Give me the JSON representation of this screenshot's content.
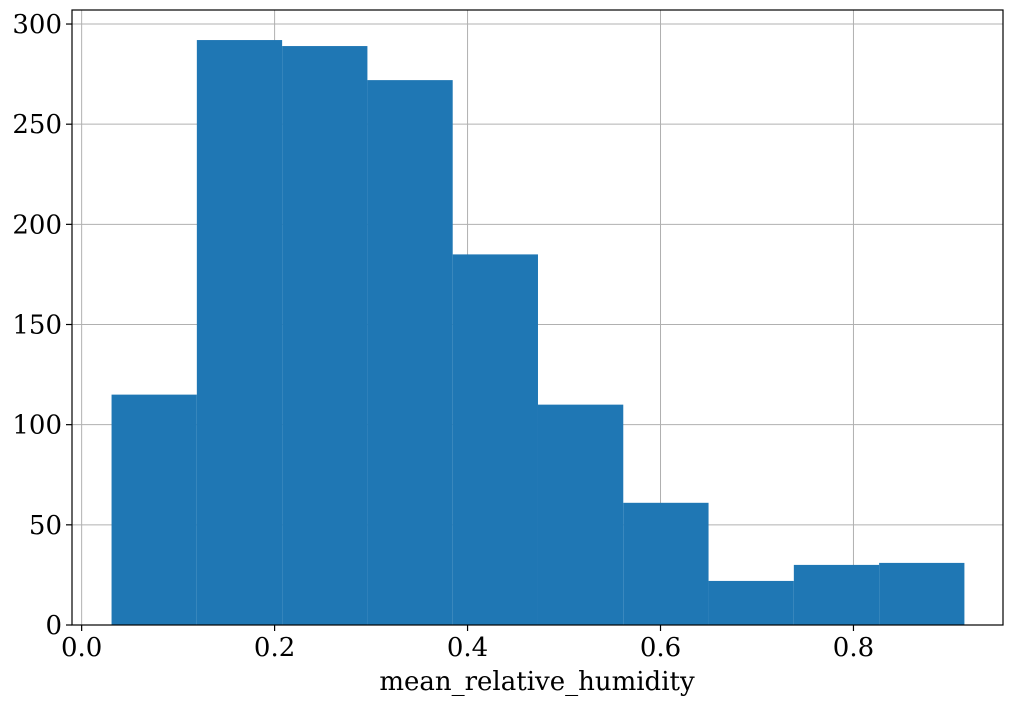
{
  "chart_data": {
    "type": "bar",
    "subtype": "histogram",
    "title": "",
    "xlabel": "mean_relative_humidity",
    "ylabel": "",
    "xlim": [
      -0.01,
      0.955
    ],
    "ylim": [
      0,
      307
    ],
    "grid": true,
    "bar_color": "#1f77b4",
    "grid_color": "#b0b0b0",
    "bin_edges": [
      0.031,
      0.1194,
      0.2078,
      0.2962,
      0.3846,
      0.473,
      0.5614,
      0.6498,
      0.7382,
      0.8266,
      0.915
    ],
    "counts": [
      115,
      292,
      289,
      272,
      185,
      110,
      61,
      22,
      30,
      31
    ],
    "x_ticks": [
      0.0,
      0.2,
      0.4,
      0.6,
      0.8
    ],
    "x_tick_labels": [
      "0.0",
      "0.2",
      "0.4",
      "0.6",
      "0.8"
    ],
    "y_ticks": [
      0,
      50,
      100,
      150,
      200,
      250,
      300
    ],
    "y_tick_labels": [
      "0",
      "50",
      "100",
      "150",
      "200",
      "250",
      "300"
    ]
  }
}
